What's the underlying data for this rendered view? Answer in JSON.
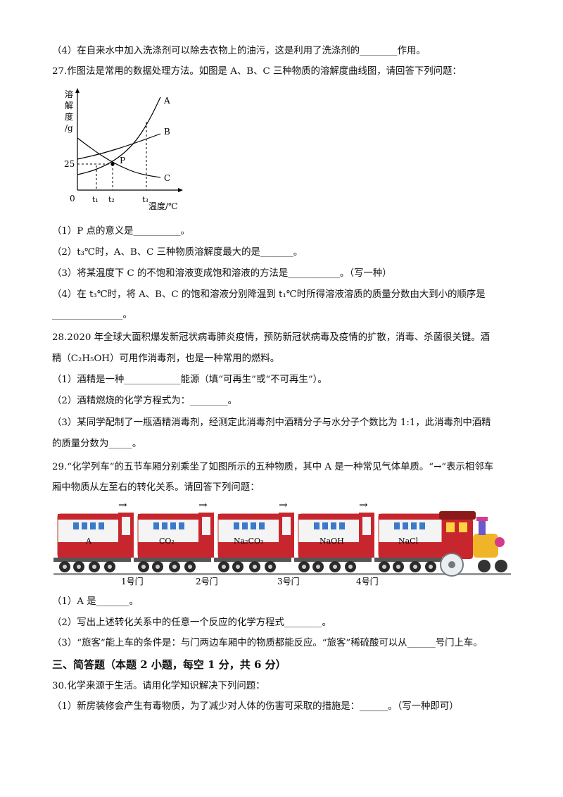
{
  "lines": {
    "q26_4": "（4）在自来水中加入洗涤剂可以除去衣物上的油污，这是利用了洗涤剂的________作用。",
    "q27_stem": "27.作图法是常用的数据处理方法。如图是 A、B、C 三种物质的溶解度曲线图，请回答下列问题：",
    "q27_1": "（1）P 点的意义是__________。",
    "q27_2": "（2）t₃℃时，A、B、C 三种物质溶解度最大的是_______。",
    "q27_3": "（3）将某温度下 C 的不饱和溶液变成饱和溶液的方法是___________。（写一种）",
    "q27_4a": "（4）在 t₃℃时，将 A、B、C 的饱和溶液分别降温到 t₁℃时所得溶液溶质的质量分数由大到小的顺序是",
    "q27_4b": "_______________。",
    "q28_stem_a": "28.2020 年全球大面积爆发新冠状病毒肺炎疫情，预防新冠状病毒及疫情的扩散，消毒、杀菌很关键。酒",
    "q28_stem_b": "精（C₂H₅OH）可用作消毒剂，也是一种常用的燃料。",
    "q28_1": "（1）酒精是一种____________能源（填“可再生”或“不可再生”）。",
    "q28_2": "（2）酒精燃烧的化学方程式为：________。",
    "q28_3a": "（3）某同学配制了一瓶酒精消毒剂，经测定此消毒剂中酒精分子与水分子个数比为 1:1，此消毒剂中酒精",
    "q28_3b": "的质量分数为_____。",
    "q29_stem_a": "29.“化学列车”的五节车厢分别乘坐了如图所示的五种物质，其中 A 是一种常见气体单质。“→”表示相邻车",
    "q29_stem_b": "厢中物质从左至右的转化关系。请回答下列问题：",
    "q29_1": "（1）A 是_______。",
    "q29_2": "（2）写出上述转化关系中的任意一个反应的化学方程式________。",
    "q29_3": "（3）“旅客”能上车的条件是：与门两边车厢中的物质都能反应。“旅客”稀硫酸可以从______号门上车。",
    "section3": "三、简答题（本题 2 小题，每空 1 分，共 6 分）",
    "q30_stem": "30.化学来源于生活。请用化学知识解决下列问题：",
    "q30_1": "（1）新房装修会产生有毒物质，为了减少对人体的伤害可采取的措施是：______。（写一种即可）"
  },
  "chart_data": {
    "type": "line",
    "ylabel": "溶解度/g",
    "xlabel": "温度/℃",
    "origin_label": "0",
    "y_tick_labels": [
      "25"
    ],
    "x_tick_labels": [
      "t₁",
      "t₂",
      "t₃"
    ],
    "point_label": "P",
    "series": [
      {
        "name": "A",
        "values": "steep rising curve"
      },
      {
        "name": "B",
        "values": "gently rising curve"
      },
      {
        "name": "C",
        "values": "falling curve"
      }
    ]
  },
  "train": {
    "cars": [
      "A",
      "CO₂",
      "Na₂CO₃",
      "NaOH",
      "NaCl"
    ],
    "doors": [
      "1号门",
      "2号门",
      "3号门",
      "4号门"
    ],
    "arrow": "→"
  }
}
